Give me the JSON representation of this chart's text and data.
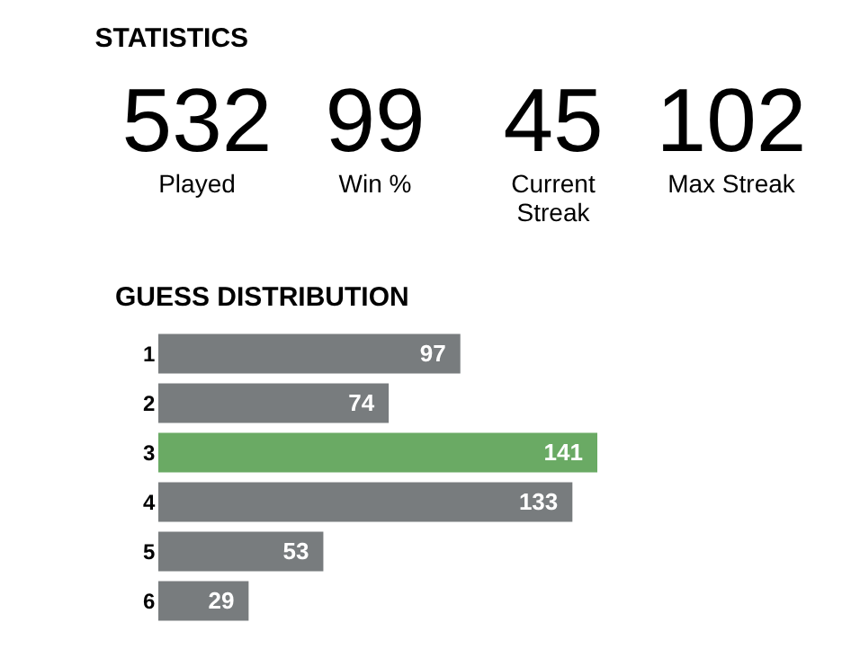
{
  "chart_data": [
    {
      "type": "other",
      "title": "STATISTICS",
      "categories": [
        "Played",
        "Win %",
        "Current Streak",
        "Max Streak"
      ],
      "values": [
        532,
        99,
        45,
        102
      ],
      "data_labels": true
    },
    {
      "type": "bar",
      "title": "GUESS DISTRIBUTION",
      "orientation": "horizontal",
      "categories": [
        "1",
        "2",
        "3",
        "4",
        "5",
        "6"
      ],
      "values": [
        97,
        74,
        141,
        133,
        53,
        29
      ],
      "colors": [
        "#787c7e",
        "#787c7e",
        "#6aaa64",
        "#787c7e",
        "#787c7e",
        "#787c7e"
      ],
      "data_labels": true
    }
  ]
}
